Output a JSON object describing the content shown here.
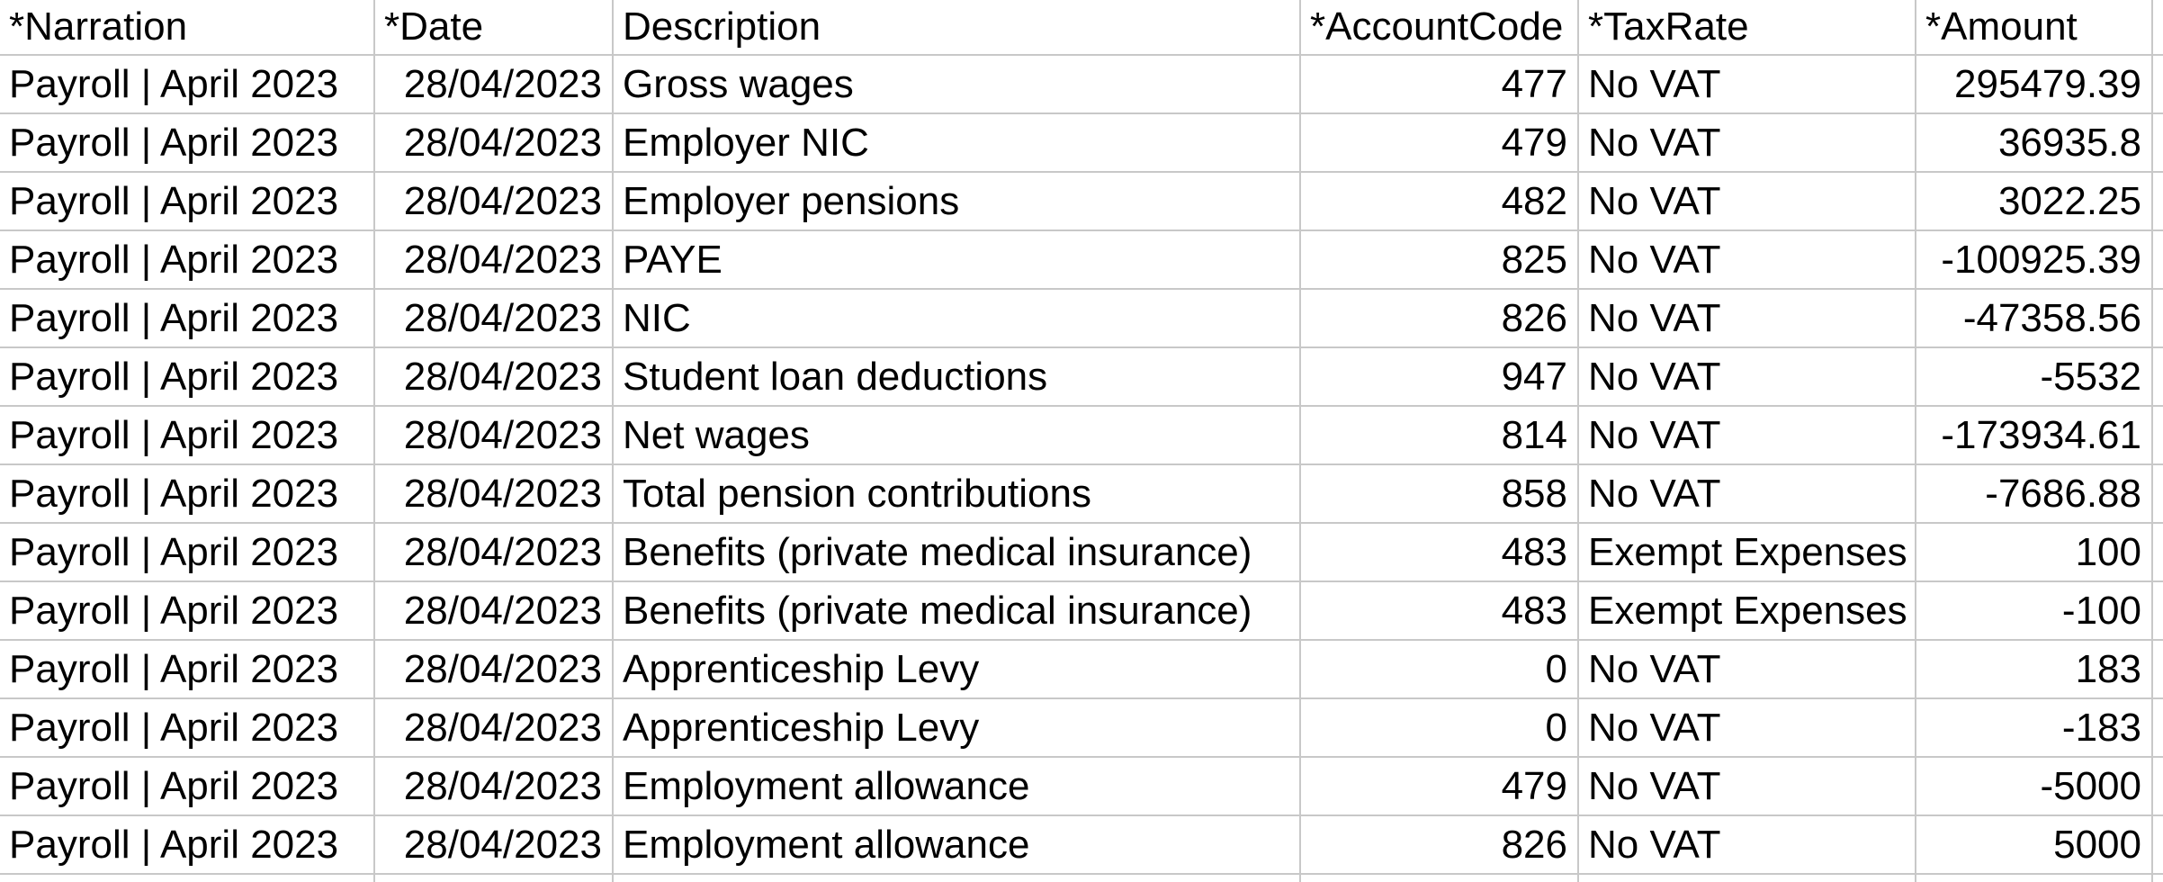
{
  "table": {
    "columns": [
      {
        "key": "narration",
        "label": "*Narration"
      },
      {
        "key": "date",
        "label": "*Date"
      },
      {
        "key": "description",
        "label": "Description"
      },
      {
        "key": "account_code",
        "label": "*AccountCode"
      },
      {
        "key": "tax_rate",
        "label": "*TaxRate"
      },
      {
        "key": "amount",
        "label": "*Amount"
      }
    ],
    "rows": [
      {
        "narration": "Payroll | April 2023",
        "date": "28/04/2023",
        "description": "Gross wages",
        "account_code": "477",
        "tax_rate": "No VAT",
        "amount": "295479.39"
      },
      {
        "narration": "Payroll | April 2023",
        "date": "28/04/2023",
        "description": "Employer NIC",
        "account_code": "479",
        "tax_rate": "No VAT",
        "amount": "36935.8"
      },
      {
        "narration": "Payroll | April 2023",
        "date": "28/04/2023",
        "description": "Employer pensions",
        "account_code": "482",
        "tax_rate": "No VAT",
        "amount": "3022.25"
      },
      {
        "narration": "Payroll | April 2023",
        "date": "28/04/2023",
        "description": "PAYE",
        "account_code": "825",
        "tax_rate": "No VAT",
        "amount": "-100925.39"
      },
      {
        "narration": "Payroll | April 2023",
        "date": "28/04/2023",
        "description": "NIC",
        "account_code": "826",
        "tax_rate": "No VAT",
        "amount": "-47358.56"
      },
      {
        "narration": "Payroll | April 2023",
        "date": "28/04/2023",
        "description": "Student loan deductions",
        "account_code": "947",
        "tax_rate": "No VAT",
        "amount": "-5532"
      },
      {
        "narration": "Payroll | April 2023",
        "date": "28/04/2023",
        "description": "Net wages",
        "account_code": "814",
        "tax_rate": "No VAT",
        "amount": "-173934.61"
      },
      {
        "narration": "Payroll | April 2023",
        "date": "28/04/2023",
        "description": "Total pension contributions",
        "account_code": "858",
        "tax_rate": "No VAT",
        "amount": "-7686.88"
      },
      {
        "narration": "Payroll | April 2023",
        "date": "28/04/2023",
        "description": "Benefits (private medical insurance)",
        "account_code": "483",
        "tax_rate": "Exempt Expenses",
        "amount": "100"
      },
      {
        "narration": "Payroll | April 2023",
        "date": "28/04/2023",
        "description": "Benefits (private medical insurance)",
        "account_code": "483",
        "tax_rate": "Exempt Expenses",
        "amount": "-100"
      },
      {
        "narration": "Payroll | April 2023",
        "date": "28/04/2023",
        "description": "Apprenticeship Levy",
        "account_code": "0",
        "tax_rate": "No VAT",
        "amount": "183"
      },
      {
        "narration": "Payroll | April 2023",
        "date": "28/04/2023",
        "description": "Apprenticeship Levy",
        "account_code": "0",
        "tax_rate": "No VAT",
        "amount": "-183"
      },
      {
        "narration": "Payroll | April 2023",
        "date": "28/04/2023",
        "description": "Employment allowance",
        "account_code": "479",
        "tax_rate": "No VAT",
        "amount": "-5000"
      },
      {
        "narration": "Payroll | April 2023",
        "date": "28/04/2023",
        "description": "Employment allowance",
        "account_code": "826",
        "tax_rate": "No VAT",
        "amount": "5000"
      }
    ]
  },
  "colors": {
    "gridline": "#c8c8c8",
    "text": "#000000",
    "background": "#ffffff"
  }
}
